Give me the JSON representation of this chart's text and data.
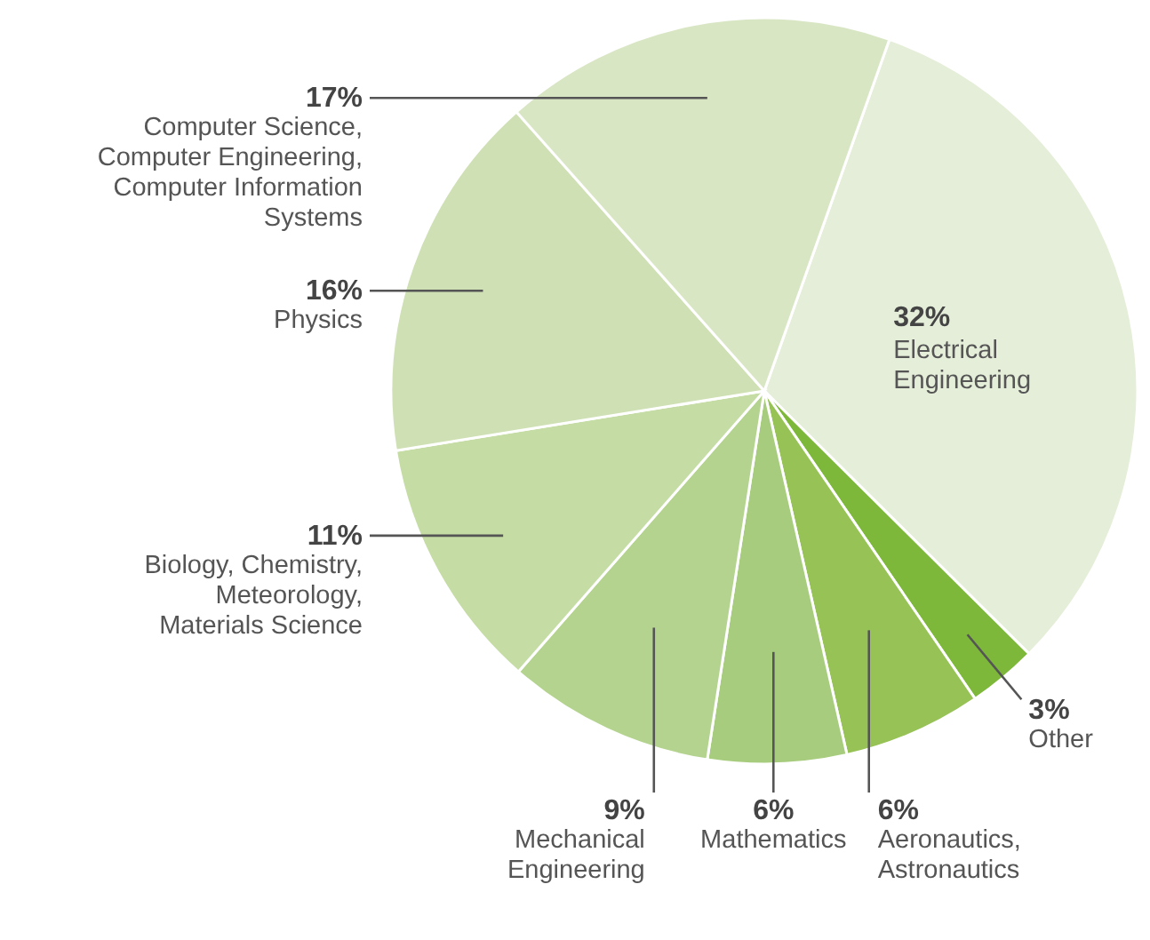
{
  "chart_data": {
    "type": "pie",
    "categories": [
      "Electrical\nEngineering",
      "Other",
      "Aeronautics,\nAstronautics",
      "Mathematics",
      "Mechanical\nEngineering",
      "Biology, Chemistry,\nMeteorology,\nMaterials Science",
      "Physics",
      "Computer Science,\nComputer Engineering,\nComputer Information\nSystems"
    ],
    "values": [
      32,
      3,
      6,
      6,
      9,
      11,
      16,
      17
    ],
    "colors": [
      "#e5eed9",
      "#7db83a",
      "#96c256",
      "#a8cc7e",
      "#b4d38f",
      "#c5dca5",
      "#cfe0b4",
      "#d9e6c4"
    ],
    "value_labels": [
      "32%",
      "3%",
      "6%",
      "6%",
      "9%",
      "11%",
      "16%",
      "17%"
    ]
  }
}
